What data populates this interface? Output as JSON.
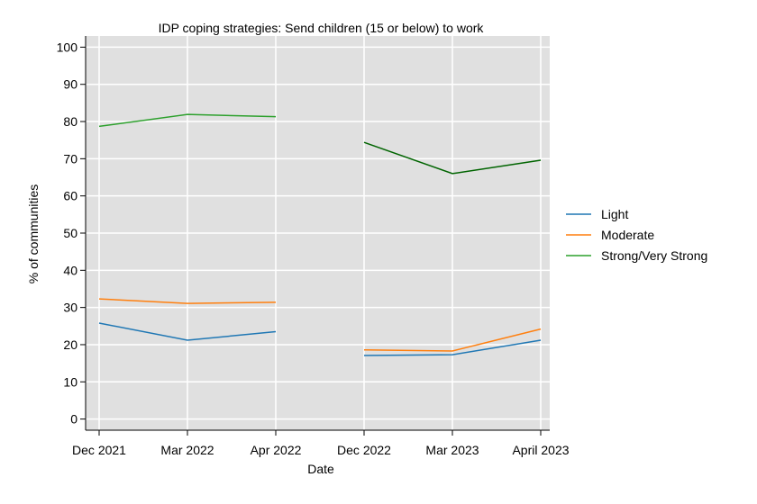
{
  "chart_data": {
    "type": "line",
    "title": "IDP coping strategies: Send children (15 or below) to work",
    "xlabel": "Date",
    "ylabel": "% of communities",
    "categories": [
      "Dec 2021",
      "Mar 2022",
      "Apr 2022",
      "Dec 2022",
      "Mar 2023",
      "April 2023"
    ],
    "ylim": [
      -3,
      103
    ],
    "yticks": [
      0,
      10,
      20,
      30,
      40,
      50,
      60,
      70,
      80,
      90,
      100
    ],
    "grid": true,
    "legend": "right",
    "series": [
      {
        "name": "Light",
        "color": "#1f77b4",
        "segments": [
          {
            "x_index": [
              0,
              1,
              2
            ],
            "values": [
              25.8,
              21.2,
              23.5
            ]
          },
          {
            "x_index": [
              3,
              4,
              5
            ],
            "values": [
              17.1,
              17.3,
              21.2
            ]
          }
        ]
      },
      {
        "name": "Moderate",
        "color": "#ff7f0e",
        "segments": [
          {
            "x_index": [
              0,
              1,
              2
            ],
            "values": [
              32.3,
              31.1,
              31.4
            ]
          },
          {
            "x_index": [
              3,
              4,
              5
            ],
            "values": [
              18.6,
              18.3,
              24.2
            ]
          }
        ]
      },
      {
        "name": "Strong/Very Strong",
        "color": "#2ca02c",
        "segments": [
          {
            "x_index": [
              0,
              1,
              2
            ],
            "values": [
              78.7,
              81.9,
              81.3
            ],
            "color": "#2ca02c"
          },
          {
            "x_index": [
              3,
              4,
              5
            ],
            "values": [
              74.4,
              66.0,
              69.6
            ],
            "color": "#006400"
          }
        ]
      }
    ]
  }
}
